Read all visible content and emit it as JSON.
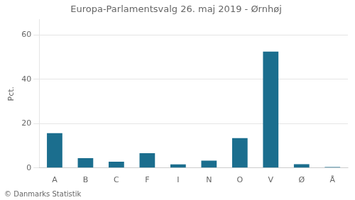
{
  "chart_data": {
    "type": "bar",
    "title": "Europa-Parlamentsvalg 26. maj 2019 - Ørnhøj",
    "ylabel": "Pct.",
    "annotations": [
      "© Danmarks Statistik"
    ],
    "categories": [
      "A",
      "B",
      "C",
      "F",
      "I",
      "N",
      "O",
      "V",
      "Ø",
      "Å"
    ],
    "values": [
      15.7,
      4.4,
      2.8,
      6.7,
      1.6,
      3.3,
      13.5,
      52.5,
      1.7,
      0.4
    ],
    "color": "#1b6e8e",
    "ylim": [
      0,
      67
    ],
    "yticks": [
      0,
      20,
      40,
      60
    ],
    "grid": true
  }
}
